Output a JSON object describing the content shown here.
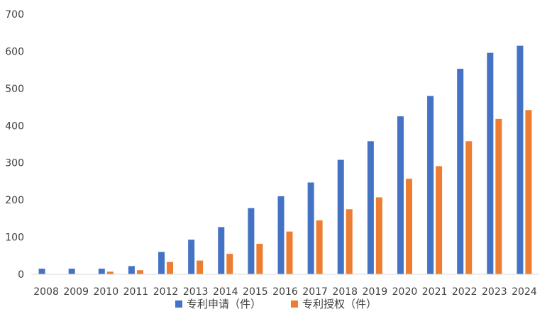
{
  "chart_data": {
    "type": "bar",
    "categories": [
      "2008",
      "2009",
      "2010",
      "2011",
      "2012",
      "2013",
      "2014",
      "2015",
      "2016",
      "2017",
      "2018",
      "2019",
      "2020",
      "2021",
      "2022",
      "2023",
      "2024"
    ],
    "series": [
      {
        "name": "专利申请（件）",
        "color": "#4472C4",
        "values": [
          15,
          15,
          15,
          22,
          60,
          93,
          127,
          178,
          210,
          247,
          308,
          358,
          425,
          480,
          553,
          596,
          615
        ]
      },
      {
        "name": "专利授权（件）",
        "color": "#ED7D31",
        "values": [
          0,
          0,
          7,
          11,
          33,
          37,
          55,
          82,
          115,
          145,
          175,
          207,
          257,
          291,
          358,
          418,
          442
        ]
      }
    ],
    "yticks": [
      "0",
      "100",
      "200",
      "300",
      "400",
      "500",
      "600",
      "700"
    ],
    "ylim": [
      0,
      700
    ],
    "grid": false,
    "legend_position": "bottom"
  }
}
